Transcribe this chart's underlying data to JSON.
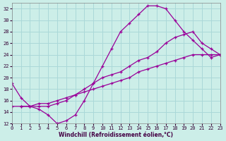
{
  "xlabel": "Windchill (Refroidissement éolien,°C)",
  "background_color": "#cceee8",
  "grid_color": "#aad8d8",
  "line_color": "#990099",
  "xlim": [
    0,
    23
  ],
  "ylim": [
    12,
    33
  ],
  "xticks": [
    0,
    1,
    2,
    3,
    4,
    5,
    6,
    7,
    8,
    9,
    10,
    11,
    12,
    13,
    14,
    15,
    16,
    17,
    18,
    19,
    20,
    21,
    22,
    23
  ],
  "yticks": [
    12,
    14,
    16,
    18,
    20,
    22,
    24,
    26,
    28,
    30,
    32
  ],
  "line1_x": [
    0,
    1,
    2,
    3,
    4,
    5,
    6,
    7,
    8,
    9,
    10,
    11,
    12,
    13,
    14,
    15,
    16,
    17,
    18,
    19,
    20,
    21,
    22,
    23
  ],
  "line1_y": [
    19,
    16.5,
    15,
    14.5,
    13.5,
    12,
    12.5,
    13.5,
    16,
    19,
    22,
    25,
    28,
    29.5,
    31,
    32.5,
    32.5,
    32,
    30,
    28,
    26.5,
    25,
    23.5,
    24
  ],
  "line2_x": [
    1,
    2,
    3,
    4,
    5,
    6,
    7,
    8,
    9,
    10,
    11,
    12,
    13,
    14,
    15,
    16,
    17,
    18,
    19,
    20,
    21,
    22,
    23
  ],
  "line2_y": [
    15,
    15,
    15,
    15,
    15.5,
    16,
    17,
    18,
    19,
    20,
    20.5,
    21,
    22,
    23,
    23.5,
    24.5,
    26,
    27,
    27.5,
    28,
    26,
    25,
    24
  ],
  "line3_x": [
    0,
    1,
    2,
    3,
    4,
    5,
    6,
    7,
    8,
    9,
    10,
    11,
    12,
    13,
    14,
    15,
    16,
    17,
    18,
    19,
    20,
    21,
    22,
    23
  ],
  "line3_y": [
    15,
    15,
    15,
    15.5,
    15.5,
    16,
    16.5,
    17,
    17.5,
    18,
    18.5,
    19,
    19.5,
    20,
    21,
    21.5,
    22,
    22.5,
    23,
    23.5,
    24,
    24,
    24,
    24
  ]
}
